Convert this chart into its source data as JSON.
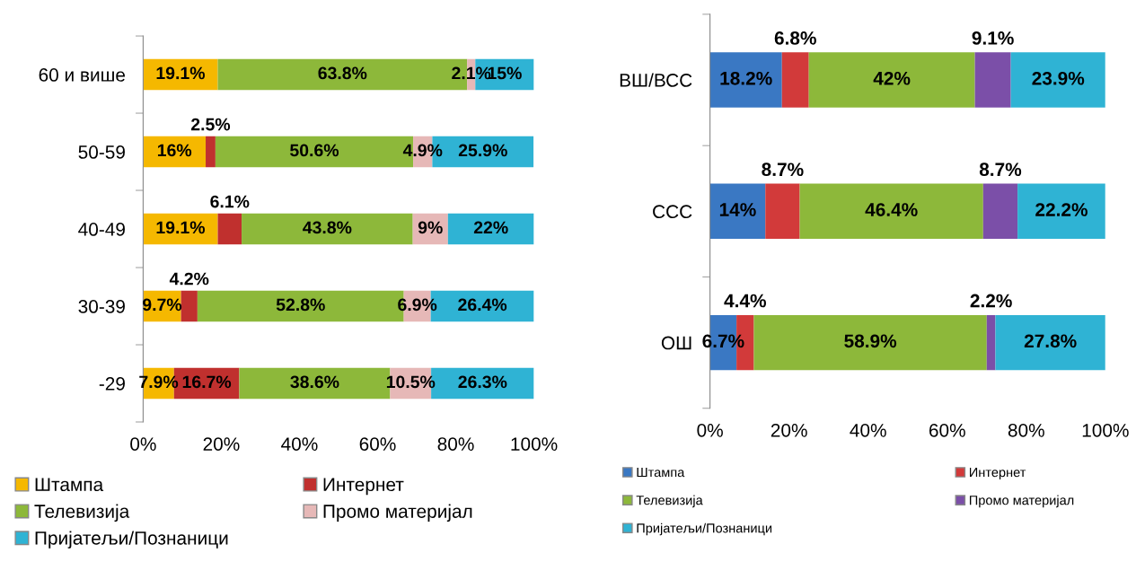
{
  "chart_data": [
    {
      "type": "bar",
      "orientation": "horizontal",
      "stacked": true,
      "categories": [
        "60 и више",
        "50-59",
        "40-49",
        "30-39",
        "-29"
      ],
      "xlim": [
        0,
        100
      ],
      "xticks": [
        {
          "value": 0,
          "label": "0%"
        },
        {
          "value": 20,
          "label": "20%"
        },
        {
          "value": 40,
          "label": "40%"
        },
        {
          "value": 60,
          "label": "60%"
        },
        {
          "value": 80,
          "label": "80%"
        },
        {
          "value": 100,
          "label": "100%"
        }
      ],
      "grid": false,
      "legend": "bottom",
      "series": [
        {
          "name": "Штампа",
          "color": "#f5b800",
          "values": [
            19.1,
            16,
            19.1,
            9.7,
            7.9
          ],
          "value_labels": [
            "19.1%",
            "16%",
            "19.1%",
            "9.7%",
            "7.9%"
          ]
        },
        {
          "name": "Интернет",
          "color": "#c0302e",
          "values": [
            null,
            2.5,
            6.1,
            4.2,
            16.7
          ],
          "value_labels": [
            null,
            "2.5%",
            "6.1%",
            "4.2%",
            "16.7%"
          ]
        },
        {
          "name": "Телевизија",
          "color": "#8db83a",
          "values": [
            63.8,
            50.6,
            43.8,
            52.8,
            38.6
          ],
          "value_labels": [
            "63.8%",
            "50.6%",
            "43.8%",
            "52.8%",
            "38.6%"
          ]
        },
        {
          "name": "Промо материјал",
          "color": "#e6b8b7",
          "values": [
            2.1,
            4.9,
            9,
            6.9,
            10.5
          ],
          "value_labels": [
            "2.1%",
            "4.9%",
            "9%",
            "6.9%",
            "10.5%"
          ]
        },
        {
          "name": "Пријатељи/Познаници",
          "color": "#2fb3d4",
          "values": [
            15,
            25.9,
            22,
            26.4,
            26.3
          ],
          "value_labels": [
            "15%",
            "25.9%",
            "22%",
            "26.4%",
            "26.3%"
          ]
        }
      ]
    },
    {
      "type": "bar",
      "orientation": "horizontal",
      "stacked": true,
      "categories": [
        "ВШ/ВСС",
        "ССС",
        "ОШ"
      ],
      "xlim": [
        0,
        100
      ],
      "xticks": [
        {
          "value": 0,
          "label": "0%"
        },
        {
          "value": 20,
          "label": "20%"
        },
        {
          "value": 40,
          "label": "40%"
        },
        {
          "value": 60,
          "label": "60%"
        },
        {
          "value": 80,
          "label": "80%"
        },
        {
          "value": 100,
          "label": "100%"
        }
      ],
      "grid": false,
      "legend": "bottom",
      "series": [
        {
          "name": "Штампа",
          "color": "#3a78c3",
          "values": [
            18.2,
            14,
            6.7
          ],
          "value_labels": [
            "18.2%",
            "14%",
            "6.7%"
          ]
        },
        {
          "name": "Интернет",
          "color": "#d23a3a",
          "values": [
            6.8,
            8.7,
            4.4
          ],
          "value_labels": [
            "6.8%",
            "8.7%",
            "4.4%"
          ]
        },
        {
          "name": "Телевизија",
          "color": "#8db83a",
          "values": [
            42,
            46.4,
            58.9
          ],
          "value_labels": [
            "42%",
            "46.4%",
            "58.9%"
          ]
        },
        {
          "name": "Промо материјал",
          "color": "#7b4fa8",
          "values": [
            9.1,
            8.7,
            2.2
          ],
          "value_labels": [
            "9.1%",
            "8.7%",
            "2.2%"
          ]
        },
        {
          "name": "Пријатељи/Познаници",
          "color": "#2fb3d4",
          "values": [
            23.9,
            22.2,
            27.8
          ],
          "value_labels": [
            "23.9%",
            "22.2%",
            "27.8%"
          ]
        }
      ]
    }
  ]
}
